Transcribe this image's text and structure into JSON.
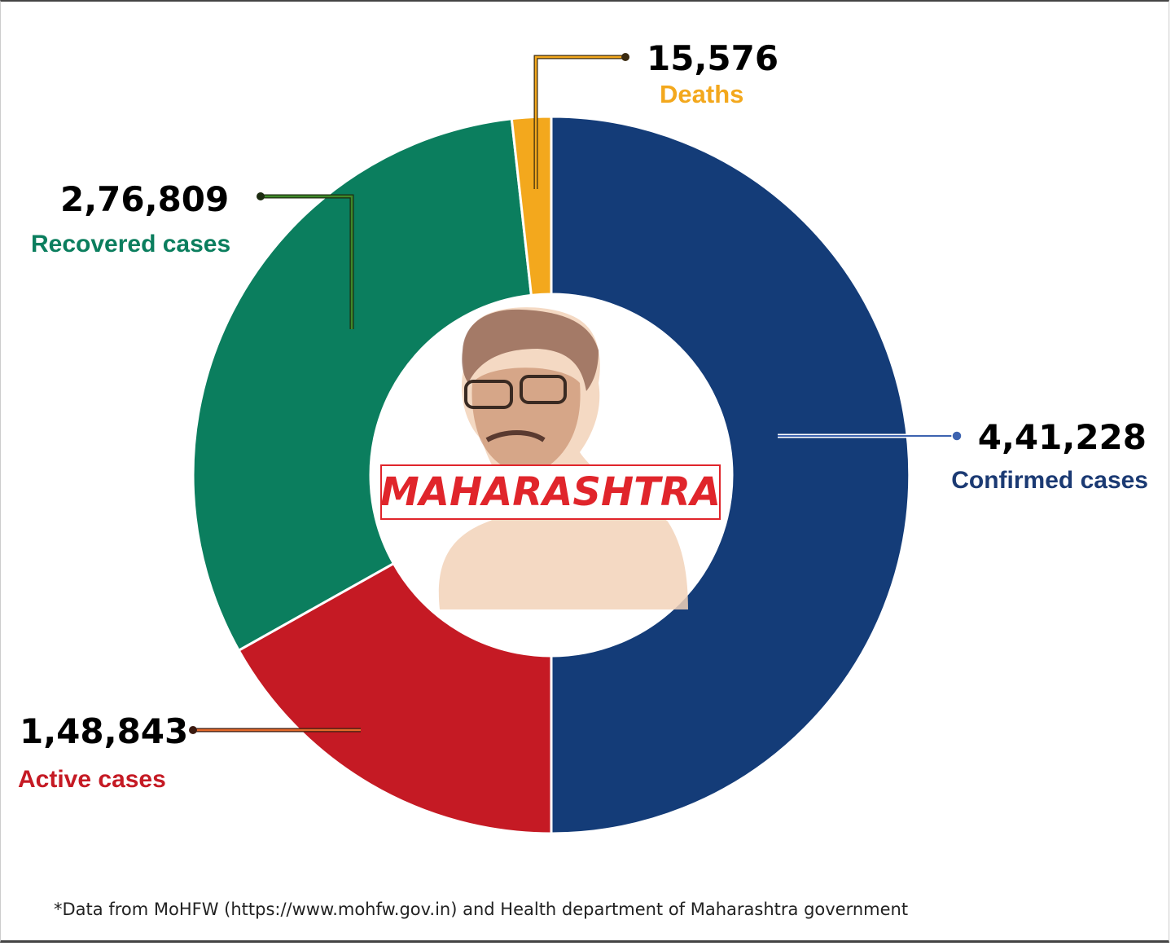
{
  "chart_data": {
    "type": "donut",
    "title": "",
    "center_label": "MAHARASHTRA",
    "slices": [
      {
        "name": "Confirmed cases",
        "value": 441228,
        "display": "4,41,228",
        "color": "#143c78"
      },
      {
        "name": "Active cases",
        "value": 148843,
        "display": "1,48,843",
        "color": "#c51a24"
      },
      {
        "name": "Recovered cases",
        "value": 276809,
        "display": "2,76,809",
        "color": "#0b7e5e"
      },
      {
        "name": "Deaths",
        "value": 15576,
        "display": "15,576",
        "color": "#f3a81d"
      }
    ]
  },
  "footnote": "*Data from MoHFW (https://www.mohfw.gov.in) and Health department of Maharashtra government"
}
